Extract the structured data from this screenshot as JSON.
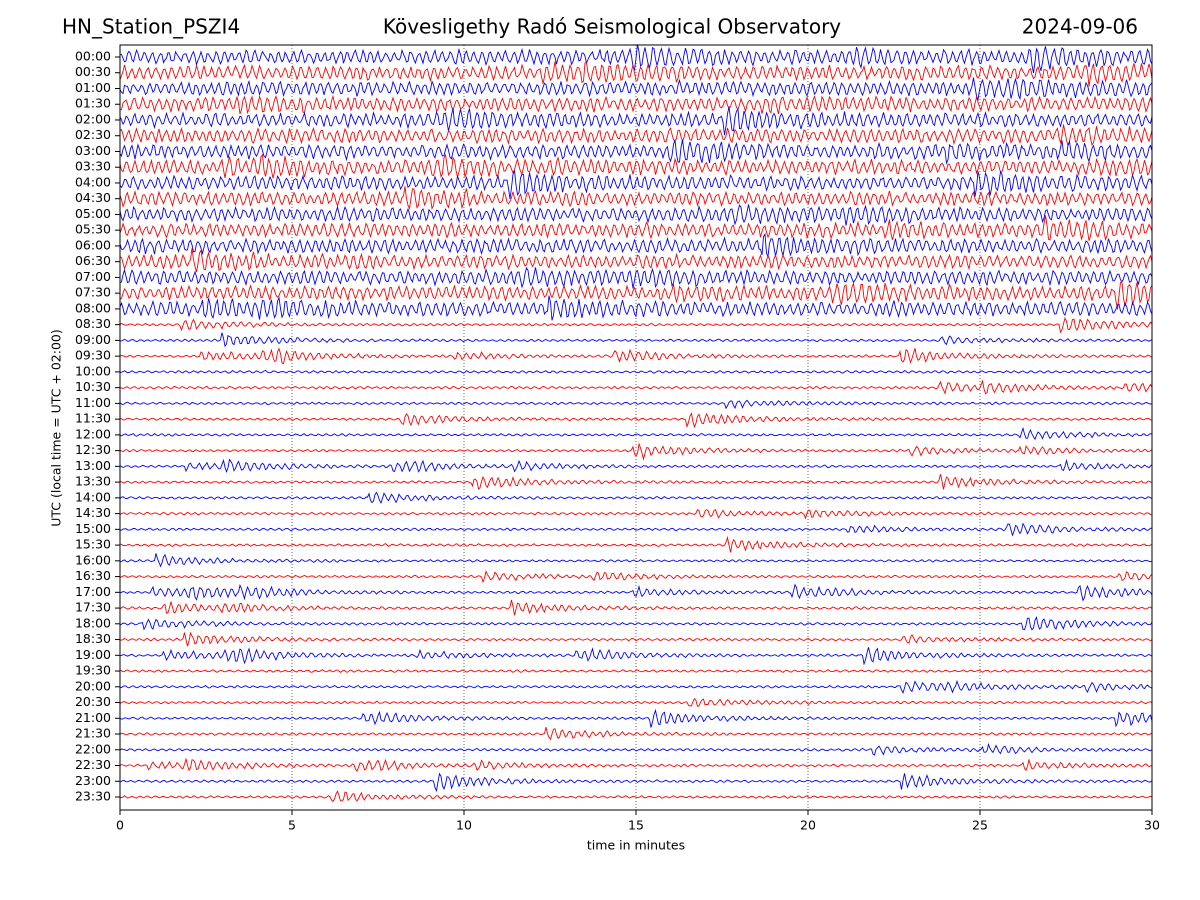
{
  "chart_data": {
    "type": "helicorder",
    "station": "HN_Station_PSZI4",
    "title": "Kövesligethy Radó Seismological Observatory",
    "date": "2024-09-06",
    "categories": [
      "00:00",
      "00:30",
      "01:00",
      "01:30",
      "02:00",
      "02:30",
      "03:00",
      "03:30",
      "04:00",
      "04:30",
      "05:00",
      "05:30",
      "06:00",
      "06:30",
      "07:00",
      "07:30",
      "08:00",
      "08:30",
      "09:00",
      "09:30",
      "10:00",
      "10:30",
      "11:00",
      "11:30",
      "12:00",
      "12:30",
      "13:00",
      "13:30",
      "14:00",
      "14:30",
      "15:00",
      "15:30",
      "16:00",
      "16:30",
      "17:00",
      "17:30",
      "18:00",
      "18:30",
      "19:00",
      "19:30",
      "20:00",
      "20:30",
      "21:00",
      "21:30",
      "22:00",
      "22:30",
      "23:00",
      "23:30"
    ],
    "xlim": [
      0,
      30
    ],
    "xticks": [
      0,
      5,
      10,
      15,
      20,
      25,
      30
    ],
    "xlabel": "time in minutes",
    "ylabel": "UTC (local time = UTC + 02:00)",
    "colors": [
      "#0000ff",
      "#ff0000"
    ],
    "grid": true
  }
}
